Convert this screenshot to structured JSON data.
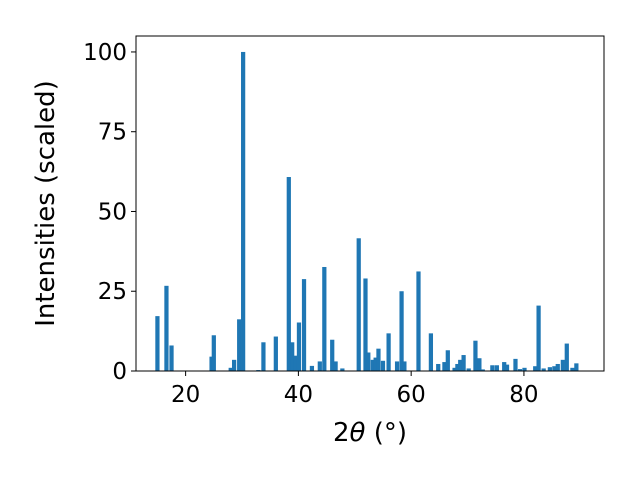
{
  "chart_data": {
    "type": "bar",
    "title": "",
    "xlabel_prefix": "2",
    "xlabel_symbol": "θ",
    "xlabel_suffix": " (°)",
    "ylabel": "Intensities (scaled)",
    "xlim": [
      11.2,
      94.2
    ],
    "ylim": [
      0,
      105
    ],
    "xticks": [
      20,
      40,
      60,
      80
    ],
    "yticks": [
      0,
      25,
      50,
      75,
      100
    ],
    "grid": false,
    "color": "#1f77b4",
    "bar_width": 0.75,
    "x": [
      15.0,
      16.6,
      17.5,
      24.6,
      25.0,
      28.0,
      28.6,
      29.5,
      30.2,
      32.9,
      33.8,
      36.0,
      38.3,
      38.9,
      39.5,
      40.1,
      41.0,
      42.4,
      43.8,
      44.6,
      46.0,
      46.6,
      47.8,
      50.7,
      51.9,
      52.4,
      53.2,
      53.7,
      54.2,
      55.0,
      56.0,
      57.5,
      58.3,
      58.8,
      61.3,
      63.5,
      64.8,
      65.9,
      66.5,
      67.7,
      68.2,
      68.7,
      69.3,
      70.2,
      71.4,
      72.1,
      72.7,
      74.4,
      75.2,
      76.5,
      77.0,
      78.5,
      79.3,
      80.1,
      82.0,
      82.6,
      83.5,
      84.6,
      85.4,
      86.0,
      86.9,
      87.6,
      88.6,
      89.3
    ],
    "values": [
      17.2,
      26.7,
      8.0,
      4.5,
      11.2,
      1.0,
      3.5,
      16.2,
      100.0,
      0.3,
      9.0,
      10.8,
      60.8,
      9.0,
      4.8,
      15.2,
      28.8,
      1.6,
      3.0,
      32.6,
      9.8,
      3.0,
      0.8,
      41.6,
      29.0,
      5.8,
      3.5,
      4.2,
      7.0,
      3.2,
      11.8,
      3.0,
      25.0,
      3.0,
      31.2,
      11.8,
      2.2,
      2.8,
      6.5,
      1.0,
      2.2,
      3.5,
      5.0,
      0.8,
      9.5,
      4.0,
      0.5,
      1.8,
      1.8,
      2.8,
      2.0,
      3.8,
      0.6,
      1.0,
      1.5,
      20.5,
      0.8,
      1.2,
      1.5,
      2.2,
      3.5,
      8.6,
      1.0,
      2.4
    ]
  }
}
